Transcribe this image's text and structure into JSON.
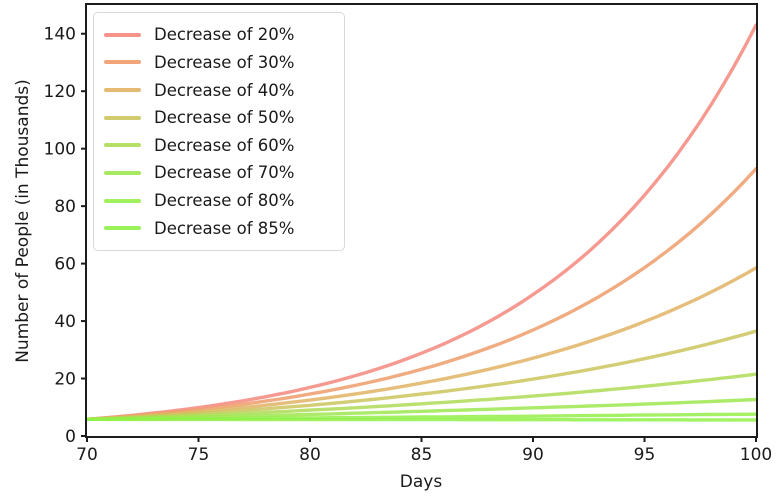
{
  "figure": {
    "background": "#ffffff",
    "axis_color": "#1c1c1c",
    "tick_label_color": "#1a1a1a"
  },
  "chart_data": {
    "type": "line",
    "title": "",
    "xlabel": "Days",
    "ylabel": "Number of People (in Thousands)",
    "xlim": [
      70,
      100
    ],
    "ylim": [
      0,
      150
    ],
    "x_ticks": [
      70,
      75,
      80,
      85,
      90,
      95,
      100
    ],
    "y_ticks": [
      0,
      20,
      40,
      60,
      80,
      100,
      120,
      140
    ],
    "grid": false,
    "legend_position": "upper-left",
    "x": [
      70,
      75,
      80,
      85,
      90,
      95,
      100
    ],
    "series": [
      {
        "name": "Decrease of 20%",
        "color": "#F5887E",
        "values": [
          5.8,
          9.9,
          16.9,
          28.8,
          49.2,
          83.8,
          143.0
        ]
      },
      {
        "name": "Decrease of 30%",
        "color": "#EF9C6B",
        "values": [
          5.8,
          9.2,
          14.6,
          23.2,
          36.9,
          58.6,
          93.0
        ]
      },
      {
        "name": "Decrease of 40%",
        "color": "#E2B364",
        "values": [
          5.8,
          8.5,
          12.5,
          18.4,
          27.1,
          39.8,
          58.5
        ]
      },
      {
        "name": "Decrease of 50%",
        "color": "#CBC55D",
        "values": [
          5.8,
          7.9,
          10.7,
          14.6,
          19.8,
          26.9,
          36.5
        ]
      },
      {
        "name": "Decrease of 60%",
        "color": "#AEDC56",
        "values": [
          5.8,
          7.2,
          9.0,
          11.2,
          13.9,
          17.3,
          21.5
        ]
      },
      {
        "name": "Decrease of 70%",
        "color": "#9DE74F",
        "values": [
          5.8,
          6.6,
          7.5,
          8.6,
          9.8,
          11.1,
          12.7
        ]
      },
      {
        "name": "Decrease of 80%",
        "color": "#95EE4B",
        "values": [
          5.8,
          6.1,
          6.3,
          6.6,
          6.9,
          7.3,
          7.6
        ]
      },
      {
        "name": "Decrease of 85%",
        "color": "#90F148",
        "values": [
          5.8,
          5.77,
          5.73,
          5.7,
          5.67,
          5.63,
          5.6
        ]
      }
    ]
  }
}
